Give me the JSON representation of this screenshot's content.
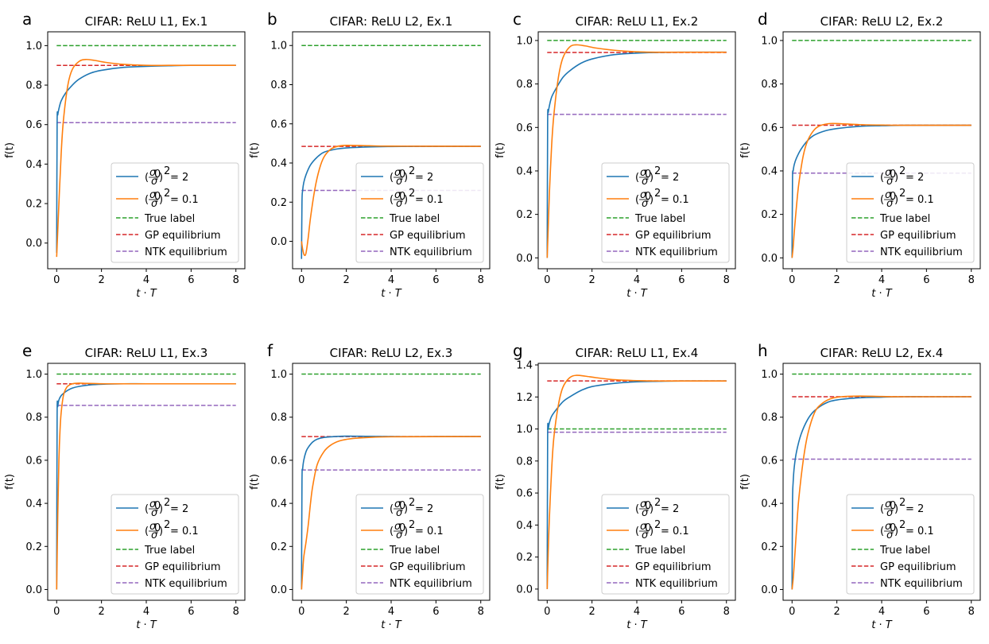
{
  "colors": {
    "sigma2": "#1f77b4",
    "sigma01": "#ff7f0e",
    "true_label": "#2ca02c",
    "gp": "#d62728",
    "ntk": "#9467bd"
  },
  "chart_data": [
    {
      "type": "line",
      "letter": "a",
      "title": "CIFAR: ReLU L1, Ex.1",
      "xlabel": "t · T",
      "ylabel": "f(t)",
      "xlim": [
        -0.4,
        8.4
      ],
      "ylim": [
        -0.13,
        1.07
      ],
      "xticks": [
        0,
        2,
        4,
        6,
        8
      ],
      "yticks": [
        0.0,
        0.2,
        0.4,
        0.6,
        0.8,
        1.0
      ],
      "ytick_labels": [
        "0.0",
        "0.2",
        "0.4",
        "0.6",
        "0.8",
        "1.0"
      ],
      "legend_position": "lower-right",
      "hlines": [
        {
          "name": "True label",
          "value": 1.0,
          "color_key": "true_label"
        },
        {
          "name": "GP equilibrium",
          "value": 0.9,
          "color_key": "gp"
        },
        {
          "name": "NTK equilibrium",
          "value": 0.61,
          "color_key": "ntk"
        }
      ],
      "series": [
        {
          "name": "(σ0/σ)^2 = 2",
          "color_key": "sigma2",
          "x": [
            0,
            0.02,
            0.05,
            0.1,
            0.2,
            0.4,
            0.7,
            1.0,
            1.5,
            2.0,
            3.0,
            4.0,
            5.0,
            6.0,
            8.0
          ],
          "y": [
            -0.05,
            0.6,
            0.65,
            0.68,
            0.72,
            0.76,
            0.8,
            0.83,
            0.86,
            0.875,
            0.89,
            0.895,
            0.898,
            0.9,
            0.9
          ]
        },
        {
          "name": "(σ0/σ)^2 = 0.1",
          "color_key": "sigma01",
          "x": [
            0,
            0.1,
            0.2,
            0.3,
            0.5,
            0.7,
            1.0,
            1.3,
            1.7,
            2.2,
            3.0,
            4.0,
            5.0,
            6.0,
            8.0
          ],
          "y": [
            -0.07,
            0.2,
            0.45,
            0.62,
            0.8,
            0.88,
            0.92,
            0.93,
            0.925,
            0.915,
            0.905,
            0.9,
            0.9,
            0.9,
            0.9
          ]
        }
      ]
    },
    {
      "type": "line",
      "letter": "b",
      "title": "CIFAR: ReLU L2, Ex.1",
      "xlabel": "t · T",
      "ylabel": "f(t)",
      "xlim": [
        -0.4,
        8.4
      ],
      "ylim": [
        -0.14,
        1.07
      ],
      "xticks": [
        0,
        2,
        4,
        6,
        8
      ],
      "yticks": [
        0.0,
        0.2,
        0.4,
        0.6,
        0.8,
        1.0
      ],
      "ytick_labels": [
        "0.0",
        "0.2",
        "0.4",
        "0.6",
        "0.8",
        "1.0"
      ],
      "legend_position": "lower-right",
      "hlines": [
        {
          "name": "True label",
          "value": 1.0,
          "color_key": "true_label"
        },
        {
          "name": "GP equilibrium",
          "value": 0.485,
          "color_key": "gp"
        },
        {
          "name": "NTK equilibrium",
          "value": 0.26,
          "color_key": "ntk"
        }
      ],
      "series": [
        {
          "name": "(σ0/σ)^2 = 2",
          "color_key": "sigma2",
          "x": [
            0,
            0.02,
            0.05,
            0.1,
            0.2,
            0.4,
            0.7,
            1.0,
            1.5,
            2.0,
            3.0,
            4.0,
            5.0,
            6.0,
            8.0
          ],
          "y": [
            -0.09,
            0.2,
            0.26,
            0.3,
            0.34,
            0.39,
            0.43,
            0.455,
            0.47,
            0.477,
            0.482,
            0.484,
            0.485,
            0.485,
            0.485
          ]
        },
        {
          "name": "(σ0/σ)^2 = 0.1",
          "color_key": "sigma01",
          "x": [
            0,
            0.05,
            0.12,
            0.2,
            0.3,
            0.4,
            0.6,
            0.8,
            1.0,
            1.3,
            1.6,
            2.0,
            3.0,
            4.0,
            8.0
          ],
          "y": [
            0.0,
            -0.04,
            -0.07,
            -0.06,
            0.02,
            0.12,
            0.27,
            0.37,
            0.43,
            0.47,
            0.485,
            0.49,
            0.488,
            0.486,
            0.485
          ]
        }
      ]
    },
    {
      "type": "line",
      "letter": "c",
      "title": "CIFAR: ReLU L1, Ex.2",
      "xlabel": "t · T",
      "ylabel": "f(t)",
      "xlim": [
        -0.4,
        8.4
      ],
      "ylim": [
        -0.05,
        1.04
      ],
      "xticks": [
        0,
        2,
        4,
        6,
        8
      ],
      "yticks": [
        0.0,
        0.2,
        0.4,
        0.6,
        0.8,
        1.0
      ],
      "ytick_labels": [
        "0.0",
        "0.2",
        "0.4",
        "0.6",
        "0.8",
        "1.0"
      ],
      "legend_position": "lower-right",
      "hlines": [
        {
          "name": "True label",
          "value": 1.0,
          "color_key": "true_label"
        },
        {
          "name": "GP equilibrium",
          "value": 0.945,
          "color_key": "gp"
        },
        {
          "name": "NTK equilibrium",
          "value": 0.66,
          "color_key": "ntk"
        }
      ],
      "series": [
        {
          "name": "(σ0/σ)^2 = 2",
          "color_key": "sigma2",
          "x": [
            0,
            0.02,
            0.05,
            0.1,
            0.2,
            0.4,
            0.7,
            1.0,
            1.5,
            2.0,
            3.0,
            4.0,
            5.0,
            6.0,
            8.0
          ],
          "y": [
            0.0,
            0.62,
            0.67,
            0.7,
            0.74,
            0.78,
            0.83,
            0.86,
            0.895,
            0.915,
            0.935,
            0.942,
            0.945,
            0.946,
            0.946
          ]
        },
        {
          "name": "(σ0/σ)^2 = 0.1",
          "color_key": "sigma01",
          "x": [
            0,
            0.05,
            0.1,
            0.2,
            0.3,
            0.5,
            0.7,
            1.0,
            1.3,
            1.7,
            2.2,
            3.0,
            4.0,
            5.0,
            8.0
          ],
          "y": [
            0.0,
            0.15,
            0.3,
            0.52,
            0.66,
            0.83,
            0.92,
            0.97,
            0.98,
            0.975,
            0.965,
            0.955,
            0.948,
            0.946,
            0.946
          ]
        }
      ]
    },
    {
      "type": "line",
      "letter": "d",
      "title": "CIFAR: ReLU L2, Ex.2",
      "xlabel": "t · T",
      "ylabel": "f(t)",
      "xlim": [
        -0.4,
        8.4
      ],
      "ylim": [
        -0.05,
        1.04
      ],
      "xticks": [
        0,
        2,
        4,
        6,
        8
      ],
      "yticks": [
        0.0,
        0.2,
        0.4,
        0.6,
        0.8,
        1.0
      ],
      "ytick_labels": [
        "0.0",
        "0.2",
        "0.4",
        "0.6",
        "0.8",
        "1.0"
      ],
      "legend_position": "lower-right",
      "hlines": [
        {
          "name": "True label",
          "value": 1.0,
          "color_key": "true_label"
        },
        {
          "name": "GP equilibrium",
          "value": 0.61,
          "color_key": "gp"
        },
        {
          "name": "NTK equilibrium",
          "value": 0.39,
          "color_key": "ntk"
        }
      ],
      "series": [
        {
          "name": "(σ0/σ)^2 = 2",
          "color_key": "sigma2",
          "x": [
            0,
            0.02,
            0.05,
            0.1,
            0.2,
            0.4,
            0.7,
            1.0,
            1.5,
            2.0,
            3.0,
            4.0,
            5.0,
            6.0,
            8.0
          ],
          "y": [
            0.0,
            0.36,
            0.4,
            0.43,
            0.46,
            0.5,
            0.54,
            0.565,
            0.585,
            0.595,
            0.605,
            0.608,
            0.61,
            0.61,
            0.61
          ]
        },
        {
          "name": "(σ0/σ)^2 = 0.1",
          "color_key": "sigma01",
          "x": [
            0,
            0.05,
            0.1,
            0.2,
            0.3,
            0.5,
            0.7,
            1.0,
            1.3,
            1.7,
            2.2,
            3.0,
            4.0,
            5.0,
            8.0
          ],
          "y": [
            0.0,
            0.05,
            0.12,
            0.24,
            0.34,
            0.47,
            0.54,
            0.59,
            0.61,
            0.618,
            0.617,
            0.613,
            0.611,
            0.61,
            0.61
          ]
        }
      ]
    },
    {
      "type": "line",
      "letter": "e",
      "title": "CIFAR: ReLU L1, Ex.3",
      "xlabel": "t · T",
      "ylabel": "f(t)",
      "xlim": [
        -0.4,
        8.4
      ],
      "ylim": [
        -0.05,
        1.05
      ],
      "xticks": [
        0,
        2,
        4,
        6,
        8
      ],
      "yticks": [
        0.0,
        0.2,
        0.4,
        0.6,
        0.8,
        1.0
      ],
      "ytick_labels": [
        "0.0",
        "0.2",
        "0.4",
        "0.6",
        "0.8",
        "1.0"
      ],
      "legend_position": "lower-right",
      "hlines": [
        {
          "name": "True label",
          "value": 1.0,
          "color_key": "true_label"
        },
        {
          "name": "GP equilibrium",
          "value": 0.955,
          "color_key": "gp"
        },
        {
          "name": "NTK equilibrium",
          "value": 0.855,
          "color_key": "ntk"
        }
      ],
      "series": [
        {
          "name": "(σ0/σ)^2 = 2",
          "color_key": "sigma2",
          "x": [
            0,
            0.02,
            0.05,
            0.1,
            0.2,
            0.3,
            0.5,
            0.7,
            1.0,
            1.5,
            2.0,
            3.0,
            4.0,
            6.0,
            8.0
          ],
          "y": [
            0.0,
            0.8,
            0.85,
            0.88,
            0.9,
            0.91,
            0.925,
            0.935,
            0.943,
            0.95,
            0.953,
            0.955,
            0.955,
            0.955,
            0.955
          ]
        },
        {
          "name": "(σ0/σ)^2 = 0.1",
          "color_key": "sigma01",
          "x": [
            0,
            0.05,
            0.1,
            0.15,
            0.2,
            0.3,
            0.4,
            0.5,
            0.7,
            1.0,
            1.3,
            1.7,
            2.2,
            3.0,
            8.0
          ],
          "y": [
            0.0,
            0.35,
            0.6,
            0.74,
            0.82,
            0.9,
            0.93,
            0.945,
            0.955,
            0.958,
            0.957,
            0.956,
            0.955,
            0.955,
            0.955
          ]
        }
      ]
    },
    {
      "type": "line",
      "letter": "f",
      "title": "CIFAR: ReLU L2, Ex.3",
      "xlabel": "t · T",
      "ylabel": "f(t)",
      "xlim": [
        -0.4,
        8.4
      ],
      "ylim": [
        -0.05,
        1.05
      ],
      "xticks": [
        0,
        2,
        4,
        6,
        8
      ],
      "yticks": [
        0.0,
        0.2,
        0.4,
        0.6,
        0.8,
        1.0
      ],
      "ytick_labels": [
        "0.0",
        "0.2",
        "0.4",
        "0.6",
        "0.8",
        "1.0"
      ],
      "legend_position": "lower-right",
      "hlines": [
        {
          "name": "True label",
          "value": 1.0,
          "color_key": "true_label"
        },
        {
          "name": "GP equilibrium",
          "value": 0.71,
          "color_key": "gp"
        },
        {
          "name": "NTK equilibrium",
          "value": 0.555,
          "color_key": "ntk"
        }
      ],
      "series": [
        {
          "name": "(σ0/σ)^2 = 2",
          "color_key": "sigma2",
          "x": [
            0,
            0.02,
            0.05,
            0.1,
            0.2,
            0.3,
            0.5,
            0.7,
            1.0,
            1.5,
            2.0,
            3.0,
            4.0,
            6.0,
            8.0
          ],
          "y": [
            0.0,
            0.5,
            0.56,
            0.6,
            0.64,
            0.66,
            0.685,
            0.698,
            0.706,
            0.71,
            0.712,
            0.711,
            0.71,
            0.71,
            0.71
          ]
        },
        {
          "name": "(σ0/σ)^2 = 0.1",
          "color_key": "sigma01",
          "x": [
            0,
            0.05,
            0.1,
            0.2,
            0.3,
            0.4,
            0.5,
            0.7,
            1.0,
            1.3,
            1.7,
            2.2,
            3.0,
            4.0,
            8.0
          ],
          "y": [
            0.0,
            0.08,
            0.15,
            0.22,
            0.3,
            0.4,
            0.48,
            0.58,
            0.64,
            0.67,
            0.69,
            0.7,
            0.706,
            0.709,
            0.71
          ]
        }
      ]
    },
    {
      "type": "line",
      "letter": "g",
      "title": "CIFAR: ReLU L1, Ex.4",
      "xlabel": "t · T",
      "ylabel": "f(t)",
      "xlim": [
        -0.4,
        8.4
      ],
      "ylim": [
        -0.07,
        1.41
      ],
      "xticks": [
        0,
        2,
        4,
        6,
        8
      ],
      "yticks": [
        0.0,
        0.2,
        0.4,
        0.6,
        0.8,
        1.0,
        1.2,
        1.4
      ],
      "ytick_labels": [
        "0.0",
        "0.2",
        "0.4",
        "0.6",
        "0.8",
        "1.0",
        "1.2",
        "1.4"
      ],
      "legend_position": "lower-right",
      "hlines": [
        {
          "name": "True label",
          "value": 1.0,
          "color_key": "true_label"
        },
        {
          "name": "GP equilibrium",
          "value": 1.3,
          "color_key": "gp"
        },
        {
          "name": "NTK equilibrium",
          "value": 0.98,
          "color_key": "ntk"
        }
      ],
      "series": [
        {
          "name": "(σ0/σ)^2 = 2",
          "color_key": "sigma2",
          "x": [
            0,
            0.02,
            0.05,
            0.1,
            0.2,
            0.4,
            0.7,
            1.0,
            1.5,
            2.0,
            3.0,
            4.0,
            5.0,
            6.0,
            8.0
          ],
          "y": [
            0.0,
            0.95,
            1.0,
            1.04,
            1.08,
            1.12,
            1.17,
            1.2,
            1.24,
            1.265,
            1.285,
            1.295,
            1.298,
            1.3,
            1.3
          ]
        },
        {
          "name": "(σ0/σ)^2 = 0.1",
          "color_key": "sigma01",
          "x": [
            0,
            0.05,
            0.1,
            0.2,
            0.3,
            0.5,
            0.7,
            1.0,
            1.3,
            1.7,
            2.2,
            3.0,
            4.0,
            5.0,
            8.0
          ],
          "y": [
            0.0,
            0.25,
            0.45,
            0.75,
            0.95,
            1.15,
            1.26,
            1.32,
            1.335,
            1.33,
            1.32,
            1.308,
            1.302,
            1.3,
            1.3
          ]
        }
      ]
    },
    {
      "type": "line",
      "letter": "h",
      "title": "CIFAR: ReLU L2, Ex.4",
      "xlabel": "t · T",
      "ylabel": "f(t)",
      "xlim": [
        -0.4,
        8.4
      ],
      "ylim": [
        -0.05,
        1.05
      ],
      "xticks": [
        0,
        2,
        4,
        6,
        8
      ],
      "yticks": [
        0.0,
        0.2,
        0.4,
        0.6,
        0.8,
        1.0
      ],
      "ytick_labels": [
        "0.0",
        "0.2",
        "0.4",
        "0.6",
        "0.8",
        "1.0"
      ],
      "legend_position": "lower-right",
      "hlines": [
        {
          "name": "True label",
          "value": 1.0,
          "color_key": "true_label"
        },
        {
          "name": "GP equilibrium",
          "value": 0.895,
          "color_key": "gp"
        },
        {
          "name": "NTK equilibrium",
          "value": 0.605,
          "color_key": "ntk"
        }
      ],
      "series": [
        {
          "name": "(σ0/σ)^2 = 2",
          "color_key": "sigma2",
          "x": [
            0,
            0.02,
            0.05,
            0.1,
            0.2,
            0.4,
            0.7,
            1.0,
            1.5,
            2.0,
            3.0,
            4.0,
            5.0,
            6.0,
            8.0
          ],
          "y": [
            0.0,
            0.4,
            0.5,
            0.57,
            0.64,
            0.72,
            0.79,
            0.83,
            0.865,
            0.88,
            0.89,
            0.893,
            0.895,
            0.895,
            0.895
          ]
        },
        {
          "name": "(σ0/σ)^2 = 0.1",
          "color_key": "sigma01",
          "x": [
            0,
            0.05,
            0.1,
            0.2,
            0.3,
            0.5,
            0.7,
            1.0,
            1.3,
            1.7,
            2.2,
            3.0,
            4.0,
            5.0,
            8.0
          ],
          "y": [
            0.0,
            0.05,
            0.12,
            0.28,
            0.42,
            0.6,
            0.72,
            0.82,
            0.86,
            0.885,
            0.895,
            0.898,
            0.896,
            0.895,
            0.895
          ]
        }
      ]
    }
  ]
}
